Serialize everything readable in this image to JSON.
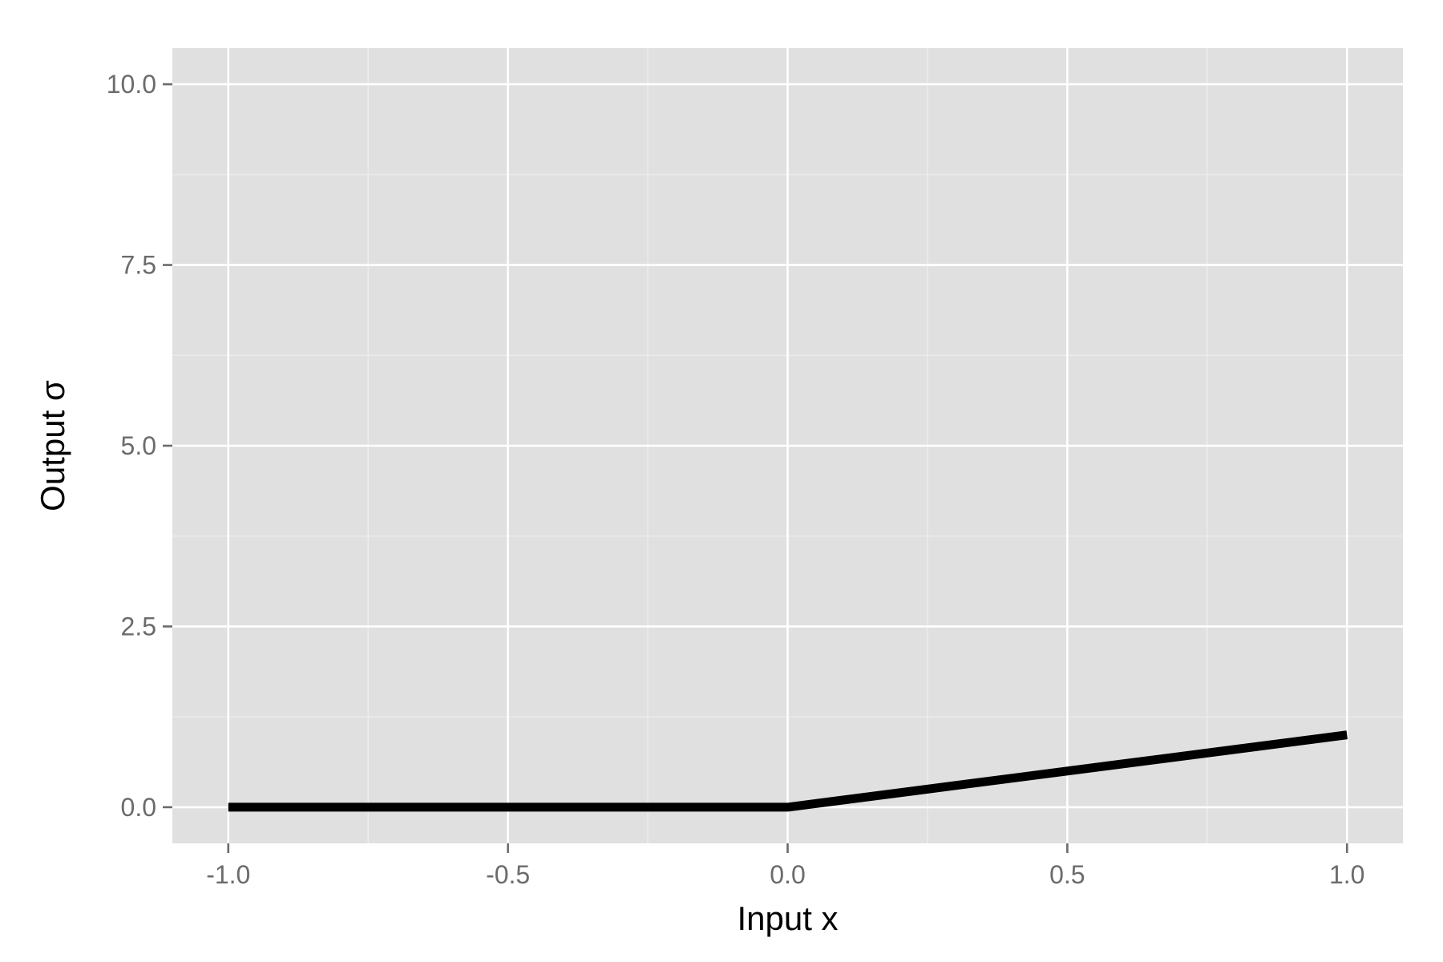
{
  "chart_data": {
    "type": "line",
    "title": "",
    "xlabel": "Input x",
    "ylabel": "Output σ",
    "xlim": [
      -1.1,
      1.1
    ],
    "ylim": [
      -0.5,
      10.5
    ],
    "x_ticks": [
      -1.0,
      -0.5,
      0.0,
      0.5,
      1.0
    ],
    "x_tick_labels": [
      "-1.0",
      "-0.5",
      "0.0",
      "0.5",
      "1.0"
    ],
    "x_minor_ticks": [
      -0.75,
      -0.25,
      0.25,
      0.75
    ],
    "y_ticks": [
      0.0,
      2.5,
      5.0,
      7.5,
      10.0
    ],
    "y_tick_labels": [
      "0.0",
      "2.5",
      "5.0",
      "7.5",
      "10.0"
    ],
    "y_minor_ticks": [
      1.25,
      3.75,
      6.25,
      8.75
    ],
    "grid": true,
    "series": [
      {
        "x": [
          -1.0,
          -0.6667,
          -0.3333,
          0.0,
          0.3333,
          0.6667,
          1.0
        ],
        "y": [
          0.0,
          0.0,
          0.0,
          0.0,
          0.3333,
          0.6667,
          1.0
        ]
      }
    ],
    "colors": {
      "panel_background": "#e0e0e0",
      "major_grid": "#ffffff",
      "minor_grid": "#eeeeee",
      "line": "#000000",
      "tick_text": "#6b6b6b",
      "tick_mark": "#6b6b6b",
      "axis_title": "#000000"
    }
  }
}
